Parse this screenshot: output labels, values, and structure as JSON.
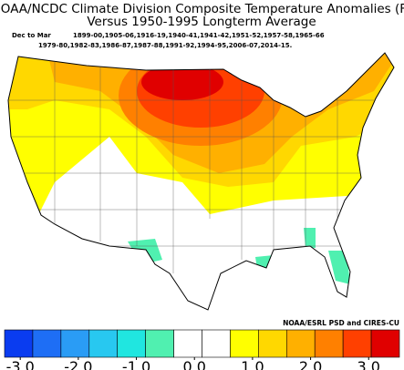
{
  "header": {
    "title": "NOAA/NCDC Climate Division Composite Temperature Anomalies (F)",
    "subtitle": "Versus 1950-1995 Longterm Average",
    "season": "Dec to Mar",
    "years_line_1": "1899-00,1905-06,1916-19,1940-41,1941-42,1951-52,1957-58,1965-66",
    "years_line_2": "1979-80,1982-83,1986-87,1987-88,1991-92,1994-95,2006-07,2014-15."
  },
  "credit": "NOAA/ESRL PSD and CIRES-CU",
  "colorbar": {
    "colors": [
      "#0a3cf0",
      "#1e6ef5",
      "#2a9cf5",
      "#28c8f0",
      "#20e6e0",
      "#50f0b0",
      "#ffffff",
      "#ffffff",
      "#ffff00",
      "#ffd800",
      "#ffb000",
      "#ff8000",
      "#ff4000",
      "#e00000"
    ],
    "xlim": [
      -3.27,
      3.53
    ],
    "xticks": [
      {
        "value": -3,
        "label": "-3.0"
      },
      {
        "value": -2,
        "label": "-2.0"
      },
      {
        "value": -1,
        "label": "-1.0"
      },
      {
        "value": 0,
        "label": "0.0"
      },
      {
        "value": 1,
        "label": "1.0"
      },
      {
        "value": 2,
        "label": "2.0"
      },
      {
        "value": 3,
        "label": "3.0"
      }
    ]
  }
}
